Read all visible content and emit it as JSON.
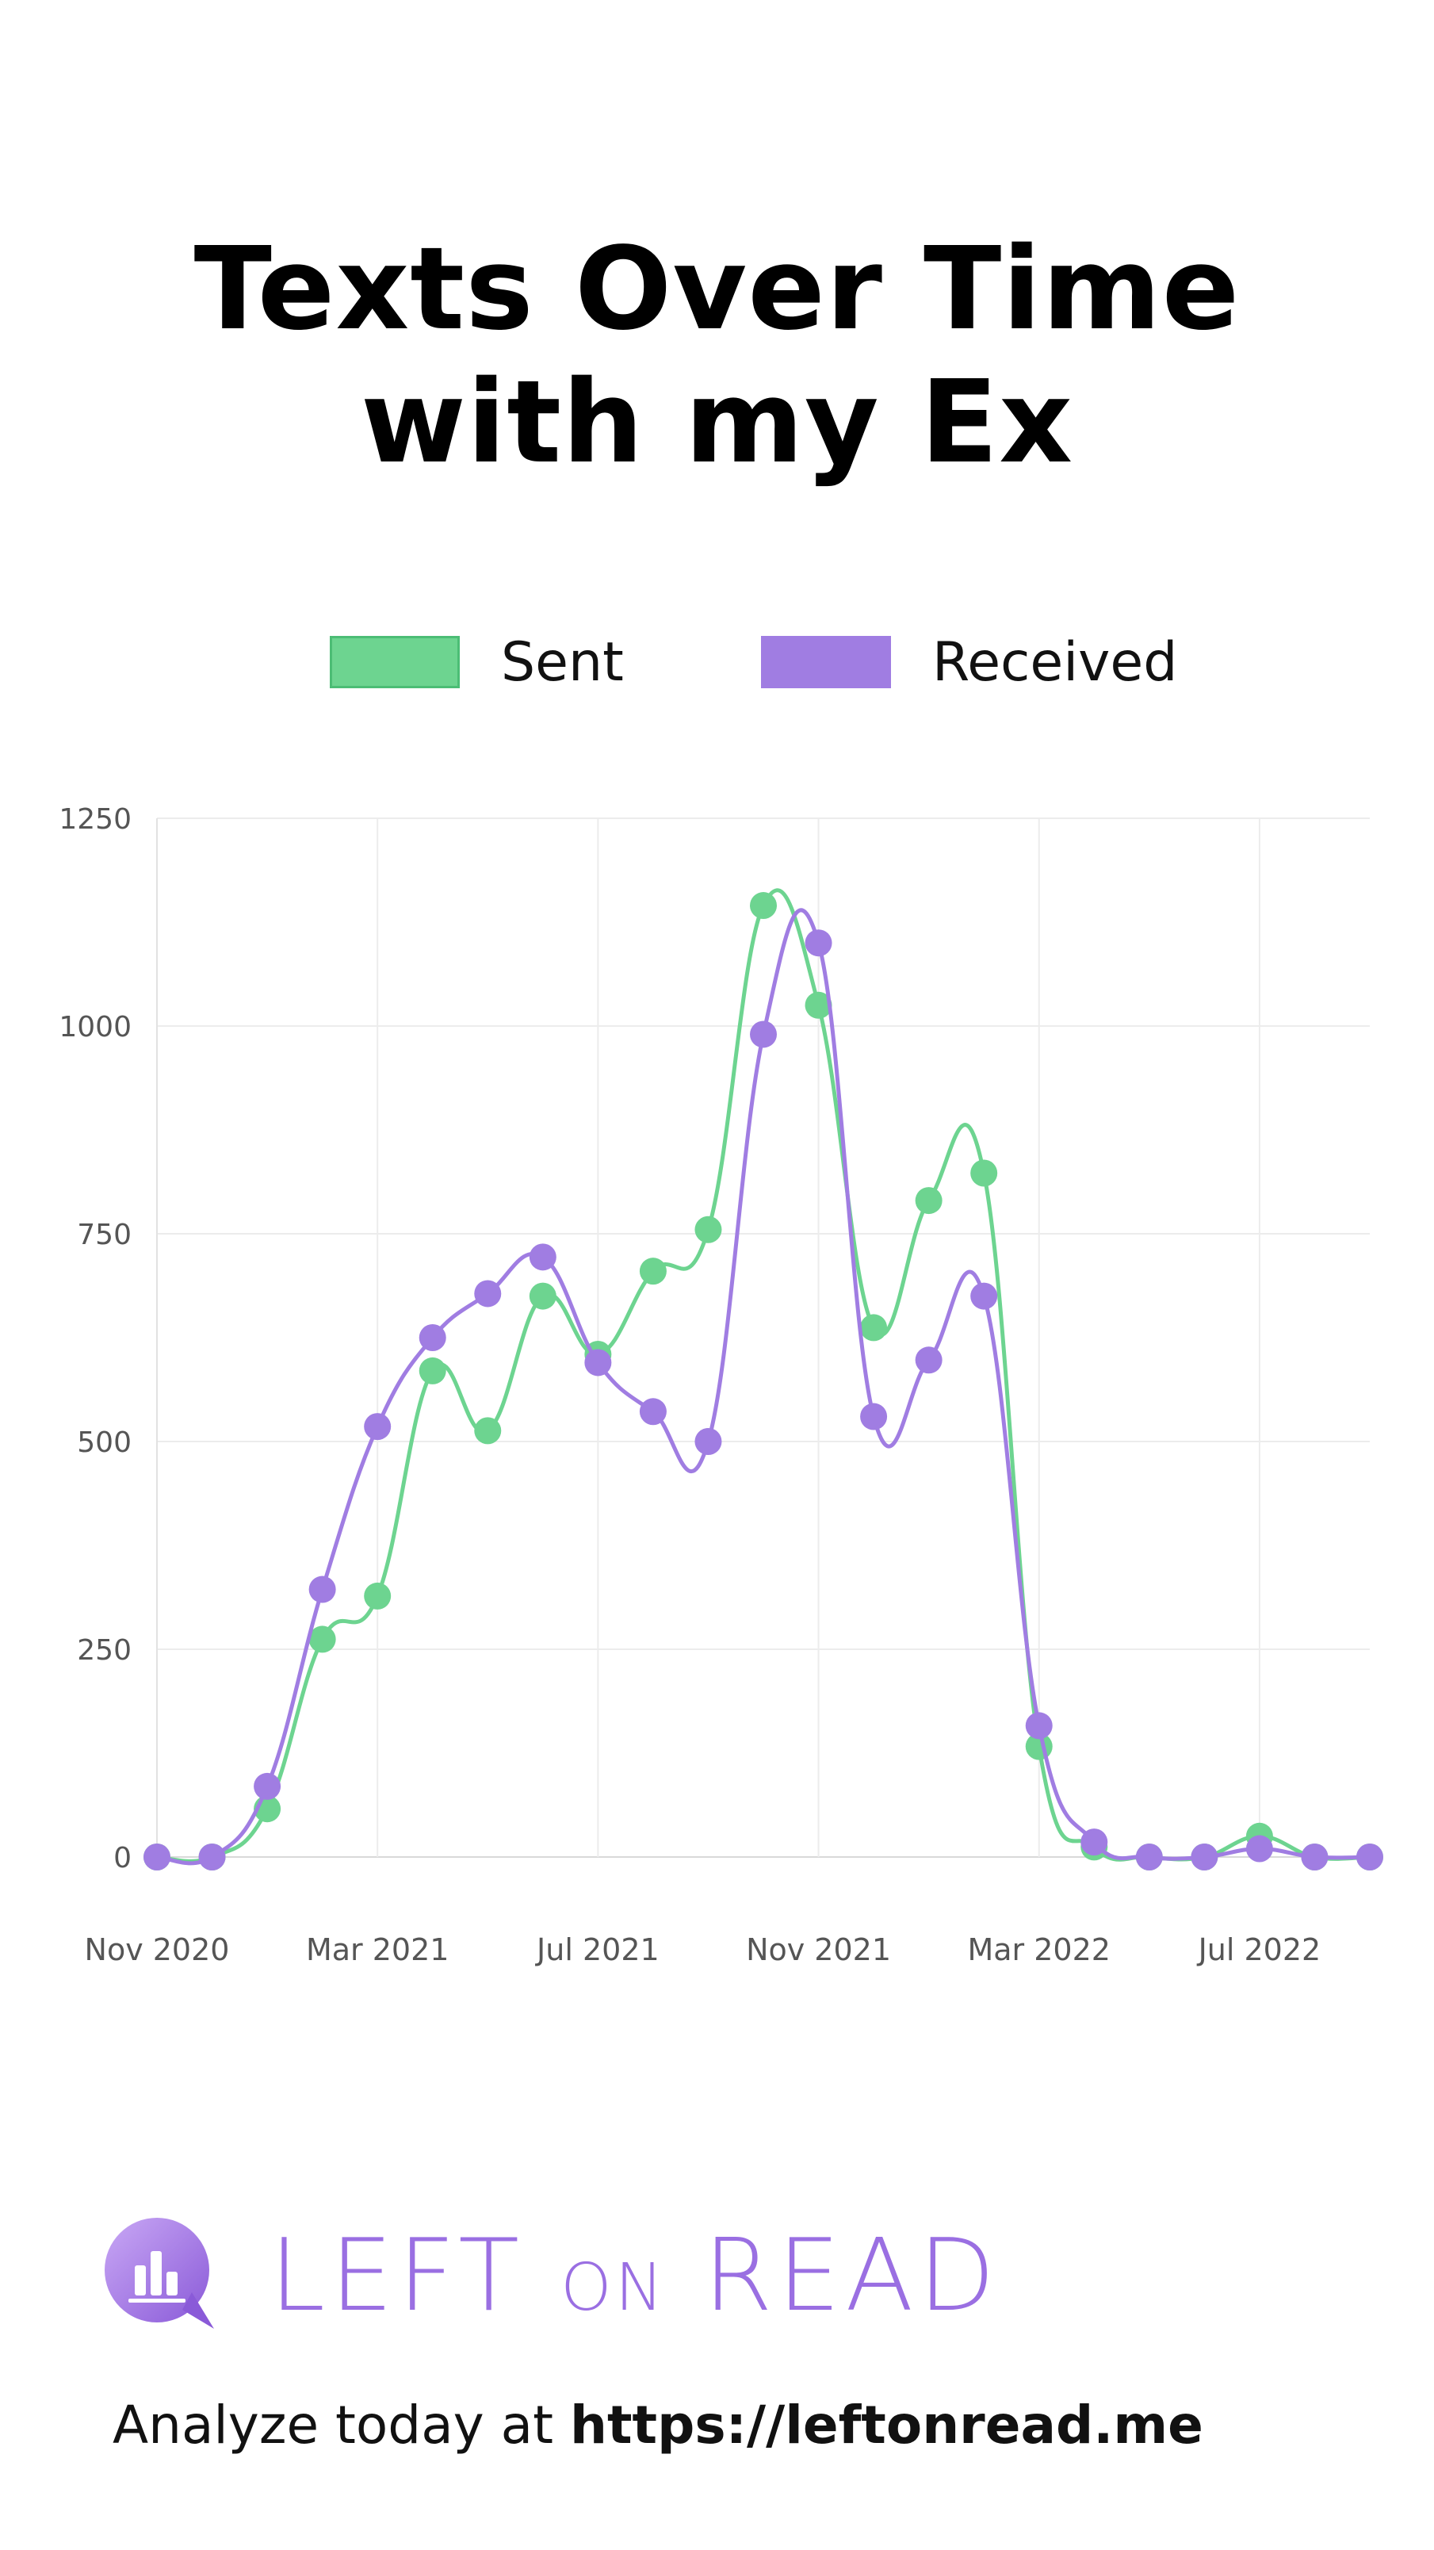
{
  "title_lines": [
    "Texts Over Time",
    "with my Ex"
  ],
  "legend": {
    "sent": {
      "label": "Sent",
      "color": "#6dd490",
      "border": "#4cbd75"
    },
    "received": {
      "label": "Received",
      "color": "#a07de2",
      "border": "#a07de2"
    }
  },
  "chart_data": {
    "type": "line",
    "title": "Texts Over Time with my Ex",
    "xlabel": "",
    "ylabel": "",
    "x": [
      "2020-11",
      "2020-12",
      "2021-01",
      "2021-02",
      "2021-03",
      "2021-04",
      "2021-05",
      "2021-06",
      "2021-07",
      "2021-08",
      "2021-09",
      "2021-10",
      "2021-11",
      "2021-12",
      "2022-01",
      "2022-02",
      "2022-03",
      "2022-04",
      "2022-05",
      "2022-06",
      "2022-07",
      "2022-08",
      "2022-09"
    ],
    "x_tick_labels": [
      "Nov 2020",
      "Mar 2021",
      "Jul 2021",
      "Nov 2021",
      "Mar 2022",
      "Jul 2022"
    ],
    "x_tick_values": [
      "2020-11",
      "2021-03",
      "2021-07",
      "2021-11",
      "2022-03",
      "2022-07"
    ],
    "ylim": [
      0,
      1250
    ],
    "y_ticks": [
      "0",
      "250",
      "500",
      "750",
      "1000",
      "1250"
    ],
    "grid": true,
    "legend_position": "top",
    "series": [
      {
        "name": "Sent",
        "color": "#6dd490",
        "values": [
          0,
          0,
          58,
          262,
          314,
          585,
          513,
          675,
          605,
          705,
          755,
          1145,
          1025,
          637,
          790,
          823,
          133,
          12,
          0,
          0,
          25,
          0,
          0
        ]
      },
      {
        "name": "Received",
        "color": "#a07de2",
        "values": [
          0,
          0,
          85,
          322,
          518,
          625,
          678,
          722,
          595,
          536,
          500,
          990,
          1100,
          530,
          598,
          675,
          158,
          18,
          0,
          0,
          10,
          0,
          0
        ]
      }
    ]
  },
  "brand": {
    "left": "LEFT",
    "on": "ON",
    "read": "READ"
  },
  "footer": {
    "prefix": "Analyze today at ",
    "url": "https://leftonread.me"
  }
}
